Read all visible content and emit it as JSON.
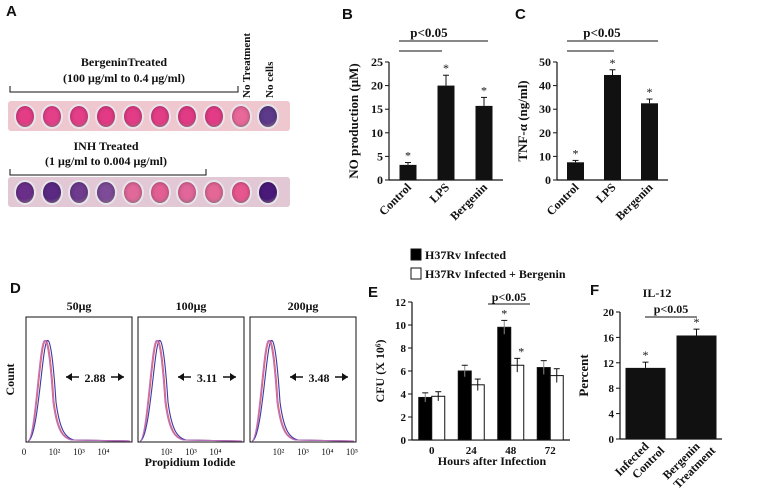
{
  "panels": {
    "a": "A",
    "b": "B",
    "c": "C",
    "d": "D",
    "e": "E",
    "f": "F"
  },
  "panelA": {
    "bergenin_label": "BergeninTreated",
    "bergenin_range": "(100 μg/ml to 0.4 μg/ml)",
    "inh_label": "INH Treated",
    "inh_range": "(1 μg/ml to 0.004 μg/ml)",
    "no_treatment": "No Treatment",
    "no_cells": "No cells",
    "row1_wells": [
      "#e43d86",
      "#e4408a",
      "#e43e88",
      "#e23a84",
      "#e23c86",
      "#e33d86",
      "#e13b85",
      "#e33c86",
      "#e8689a",
      "#5d3a8a"
    ],
    "row2_wells": [
      "#6a2f8a",
      "#5a2a82",
      "#6e3b8e",
      "#7d4b98",
      "#e0699a",
      "#e25f94",
      "#e1669a",
      "#e46896",
      "#e7578f",
      "#4a1a7a"
    ],
    "plate_bg": "#efc7cf",
    "plate2_bg": "#e2c7d4"
  },
  "chart_data": [
    {
      "id": "B",
      "type": "bar",
      "title": "",
      "categories": [
        "Control",
        "LPS",
        "Bergenin"
      ],
      "values": [
        3.2,
        20,
        15.7
      ],
      "errors": [
        0.5,
        2.2,
        1.8
      ],
      "ylabel": "NO production (μM)",
      "ylim": [
        0,
        25
      ],
      "yticks": [
        0,
        5,
        10,
        15,
        20,
        25
      ],
      "star": "*",
      "significance": "p<0.05"
    },
    {
      "id": "C",
      "type": "bar",
      "title": "",
      "categories": [
        "Control",
        "LPS",
        "Bergenin"
      ],
      "values": [
        7.5,
        44.5,
        32.5
      ],
      "errors": [
        0.8,
        2.2,
        1.8
      ],
      "ylabel": "TNF-α (ng/ml)",
      "ylim": [
        0,
        50
      ],
      "yticks": [
        0,
        10,
        20,
        30,
        40,
        50
      ],
      "star": "*",
      "significance": "p<0.05"
    },
    {
      "id": "D",
      "type": "histogram",
      "xlabel": "Propidium Iodide",
      "ylabel": "Count",
      "panels": [
        {
          "title": "50μg",
          "value": "2.88"
        },
        {
          "title": "100μg",
          "value": "3.11"
        },
        {
          "title": "200μg",
          "value": "3.48"
        }
      ],
      "xticks": [
        "0",
        "10²",
        "10³",
        "10⁴",
        "10⁵"
      ]
    },
    {
      "id": "E",
      "type": "bar",
      "categories": [
        "0",
        "24",
        "48",
        "72"
      ],
      "series": [
        {
          "name": "H37Rv Infected",
          "values": [
            3.7,
            6.0,
            9.8,
            6.3
          ],
          "errors": [
            0.4,
            0.5,
            0.6,
            0.6
          ],
          "color": "#000000"
        },
        {
          "name": "H37Rv Infected + Bergenin",
          "values": [
            3.8,
            4.8,
            6.5,
            5.6
          ],
          "errors": [
            0.4,
            0.5,
            0.6,
            0.6
          ],
          "color": "#ffffff"
        }
      ],
      "xlabel": "Hours after Infection",
      "ylabel": "CFU (X 10⁶)",
      "ylim": [
        0,
        12
      ],
      "yticks": [
        0,
        2,
        4,
        6,
        8,
        10,
        12
      ],
      "star": "*",
      "significance": "p<0.05"
    },
    {
      "id": "F",
      "type": "bar",
      "title": "IL-12",
      "categories": [
        "Infected Control",
        "Bergenin Treatment"
      ],
      "category_lines": [
        [
          "Infected",
          "Control"
        ],
        [
          "Bergenin",
          "Treatment"
        ]
      ],
      "values": [
        11.2,
        16.3
      ],
      "errors": [
        0.9,
        1.0
      ],
      "ylabel": "Percent",
      "ylim": [
        0,
        20
      ],
      "yticks": [
        0,
        4,
        8,
        12,
        16,
        20
      ],
      "star": "*",
      "significance": "p<0.05"
    }
  ]
}
